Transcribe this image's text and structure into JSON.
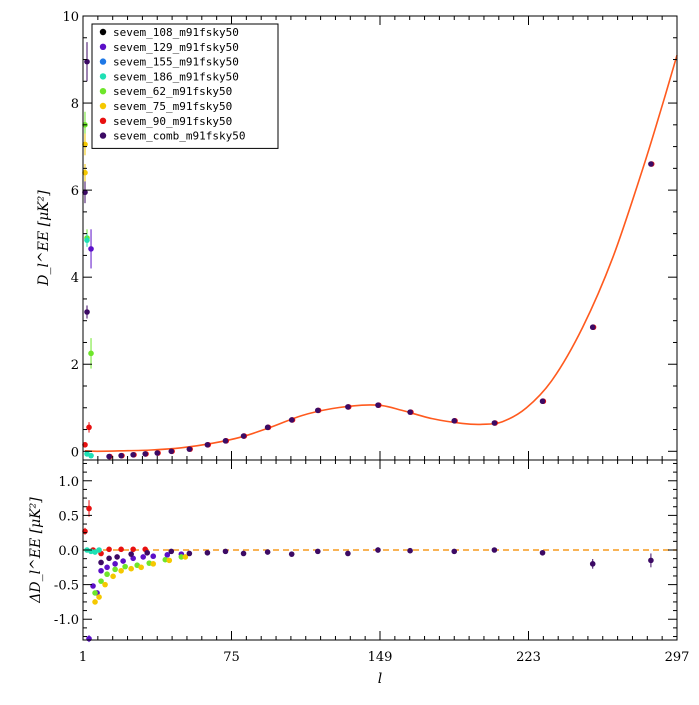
{
  "chart_data": {
    "type": "scatter",
    "xlabel": "l",
    "xlim": [
      1,
      297
    ],
    "xticks": [
      1,
      75,
      149,
      223,
      297
    ],
    "top_panel": {
      "ylabel": "D_l^EE [μK²]",
      "ylim": [
        -0.2,
        10
      ],
      "yticks": [
        0,
        2,
        4,
        6,
        8,
        10
      ]
    },
    "bottom_panel": {
      "ylabel": "ΔD_l^EE [μK²]",
      "ylim": [
        -1.3,
        1.3
      ],
      "yticks": [
        -1.0,
        -0.5,
        0.0,
        0.5,
        1.0
      ]
    },
    "legend": {
      "placement": "top-left",
      "entries": [
        {
          "name": "sevem_108_m91fsky50",
          "color": "#000000"
        },
        {
          "name": "sevem_129_m91fsky50",
          "color": "#5b0fc8"
        },
        {
          "name": "sevem_155_m91fsky50",
          "color": "#1e78e6"
        },
        {
          "name": "sevem_186_m91fsky50",
          "color": "#1fe0b4"
        },
        {
          "name": "sevem_62_m91fsky50",
          "color": "#6ee62a"
        },
        {
          "name": "sevem_75_m91fsky50",
          "color": "#f5c800"
        },
        {
          "name": "sevem_90_m91fsky50",
          "color": "#e81010"
        },
        {
          "name": "sevem_comb_m91fsky50",
          "color": "#3c0a64"
        }
      ]
    },
    "model_curve": {
      "name": "theory",
      "color": "#ff5a1e",
      "points": [
        [
          2,
          0.01
        ],
        [
          8,
          0.0
        ],
        [
          20,
          0.01
        ],
        [
          35,
          0.03
        ],
        [
          50,
          0.08
        ],
        [
          65,
          0.18
        ],
        [
          80,
          0.33
        ],
        [
          95,
          0.56
        ],
        [
          110,
          0.82
        ],
        [
          125,
          0.98
        ],
        [
          140,
          1.06
        ],
        [
          150,
          1.05
        ],
        [
          160,
          0.94
        ],
        [
          175,
          0.75
        ],
        [
          190,
          0.64
        ],
        [
          200,
          0.62
        ],
        [
          210,
          0.68
        ],
        [
          222,
          1.0
        ],
        [
          235,
          1.65
        ],
        [
          250,
          2.85
        ],
        [
          265,
          4.45
        ],
        [
          280,
          6.5
        ],
        [
          290,
          8.0
        ],
        [
          297,
          9.1
        ]
      ]
    },
    "top_points": {
      "binned": [
        {
          "l": 14,
          "value": -0.12
        },
        {
          "l": 20,
          "value": -0.1
        },
        {
          "l": 26,
          "value": -0.08
        },
        {
          "l": 32,
          "value": -0.06
        },
        {
          "l": 38,
          "value": -0.04
        },
        {
          "l": 45,
          "value": 0.0
        },
        {
          "l": 54,
          "value": 0.05
        },
        {
          "l": 63,
          "value": 0.15
        },
        {
          "l": 72,
          "value": 0.24
        },
        {
          "l": 81,
          "value": 0.35
        },
        {
          "l": 93,
          "value": 0.55
        },
        {
          "l": 105,
          "value": 0.72
        },
        {
          "l": 118,
          "value": 0.94
        },
        {
          "l": 133,
          "value": 1.02
        },
        {
          "l": 148,
          "value": 1.06
        },
        {
          "l": 164,
          "value": 0.9
        },
        {
          "l": 186,
          "value": 0.7
        },
        {
          "l": 206,
          "value": 0.65
        },
        {
          "l": 230,
          "value": 1.15
        },
        {
          "l": 255,
          "value": 2.85
        },
        {
          "l": 284,
          "value": 6.6
        }
      ],
      "low_l": [
        {
          "series": "sevem_62_m91fsky50",
          "l": 2,
          "value": 7.5,
          "err": 0.3
        },
        {
          "series": "sevem_75_m91fsky50",
          "l": 2,
          "value": 7.05,
          "err": 0.25
        },
        {
          "series": "sevem_75_m91fsky50",
          "l": 2,
          "value": 6.4,
          "err": 0.2
        },
        {
          "series": "sevem_comb_m91fsky50",
          "l": 3,
          "value": 8.95,
          "err": 0.45
        },
        {
          "series": "sevem_comb_m91fsky50",
          "l": 2,
          "value": 5.95,
          "err": 0.25
        },
        {
          "series": "sevem_62_m91fsky50",
          "l": 3,
          "value": 4.9,
          "err": 0.2
        },
        {
          "series": "sevem_186_m91fsky50",
          "l": 3,
          "value": 4.85,
          "err": 0.15
        },
        {
          "series": "sevem_129_m91fsky50",
          "l": 5,
          "value": 4.65,
          "err": 0.45
        },
        {
          "series": "sevem_comb_m91fsky50",
          "l": 3,
          "value": 3.2,
          "err": 0.15
        },
        {
          "series": "sevem_62_m91fsky50",
          "l": 5,
          "value": 2.25,
          "err": 0.35
        },
        {
          "series": "sevem_90_m91fsky50",
          "l": 4,
          "value": 0.55,
          "err": 0.12
        },
        {
          "series": "sevem_90_m91fsky50",
          "l": 2,
          "value": 0.15,
          "err": 0.06
        },
        {
          "series": "sevem_186_m91fsky50",
          "l": 3,
          "value": -0.06,
          "err": 0.03
        },
        {
          "series": "sevem_186_m91fsky50",
          "l": 5,
          "value": -0.1,
          "err": 0.03
        }
      ]
    },
    "residual_points": [
      {
        "series": "sevem_90_m91fsky50",
        "l": 2,
        "value": 0.27,
        "err": 0.05
      },
      {
        "series": "sevem_90_m91fsky50",
        "l": 4,
        "value": 0.6,
        "err": 0.12
      },
      {
        "series": "sevem_90_m91fsky50",
        "l": 6,
        "value": 0.0,
        "err": 0.02
      },
      {
        "series": "sevem_90_m91fsky50",
        "l": 10,
        "value": -0.05,
        "err": 0.02
      },
      {
        "series": "sevem_90_m91fsky50",
        "l": 14,
        "value": 0.01,
        "err": 0.01
      },
      {
        "series": "sevem_90_m91fsky50",
        "l": 20,
        "value": 0.01,
        "err": 0.01
      },
      {
        "series": "sevem_90_m91fsky50",
        "l": 26,
        "value": 0.01,
        "err": 0.01
      },
      {
        "series": "sevem_90_m91fsky50",
        "l": 32,
        "value": 0.01,
        "err": 0.01
      },
      {
        "series": "sevem_186_m91fsky50",
        "l": 3,
        "value": 0.0,
        "err": 0.03
      },
      {
        "series": "sevem_186_m91fsky50",
        "l": 5,
        "value": -0.02,
        "err": 0.02
      },
      {
        "series": "sevem_186_m91fsky50",
        "l": 7,
        "value": -0.03,
        "err": 0.02
      },
      {
        "series": "sevem_186_m91fsky50",
        "l": 9,
        "value": 0.0,
        "err": 0.02
      },
      {
        "series": "sevem_129_m91fsky50",
        "l": 4,
        "value": -1.28,
        "err": 0.05
      },
      {
        "series": "sevem_129_m91fsky50",
        "l": 6,
        "value": -0.52,
        "err": 0.03
      },
      {
        "series": "sevem_129_m91fsky50",
        "l": 8,
        "value": -0.62,
        "err": 0.03
      },
      {
        "series": "sevem_129_m91fsky50",
        "l": 10,
        "value": -0.3,
        "err": 0.02
      },
      {
        "series": "sevem_129_m91fsky50",
        "l": 13,
        "value": -0.25,
        "err": 0.02
      },
      {
        "series": "sevem_129_m91fsky50",
        "l": 17,
        "value": -0.2,
        "err": 0.02
      },
      {
        "series": "sevem_129_m91fsky50",
        "l": 21,
        "value": -0.16,
        "err": 0.02
      },
      {
        "series": "sevem_129_m91fsky50",
        "l": 26,
        "value": -0.12,
        "err": 0.02
      },
      {
        "series": "sevem_129_m91fsky50",
        "l": 31,
        "value": -0.1,
        "err": 0.02
      },
      {
        "series": "sevem_129_m91fsky50",
        "l": 36,
        "value": -0.09,
        "err": 0.02
      },
      {
        "series": "sevem_129_m91fsky50",
        "l": 43,
        "value": -0.07,
        "err": 0.02
      },
      {
        "series": "sevem_129_m91fsky50",
        "l": 50,
        "value": -0.06,
        "err": 0.02
      },
      {
        "series": "sevem_62_m91fsky50",
        "l": 7,
        "value": -0.62,
        "err": 0.03
      },
      {
        "series": "sevem_62_m91fsky50",
        "l": 10,
        "value": -0.45,
        "err": 0.03
      },
      {
        "series": "sevem_62_m91fsky50",
        "l": 13,
        "value": -0.35,
        "err": 0.02
      },
      {
        "series": "sevem_62_m91fsky50",
        "l": 17,
        "value": -0.28,
        "err": 0.02
      },
      {
        "series": "sevem_62_m91fsky50",
        "l": 22,
        "value": -0.24,
        "err": 0.02
      },
      {
        "series": "sevem_62_m91fsky50",
        "l": 28,
        "value": -0.22,
        "err": 0.02
      },
      {
        "series": "sevem_62_m91fsky50",
        "l": 34,
        "value": -0.19,
        "err": 0.02
      },
      {
        "series": "sevem_62_m91fsky50",
        "l": 42,
        "value": -0.14,
        "err": 0.02
      },
      {
        "series": "sevem_62_m91fsky50",
        "l": 50,
        "value": -0.1,
        "err": 0.02
      },
      {
        "series": "sevem_75_m91fsky50",
        "l": 7,
        "value": -0.75,
        "err": 0.03
      },
      {
        "series": "sevem_75_m91fsky50",
        "l": 9,
        "value": -0.68,
        "err": 0.03
      },
      {
        "series": "sevem_75_m91fsky50",
        "l": 12,
        "value": -0.5,
        "err": 0.03
      },
      {
        "series": "sevem_75_m91fsky50",
        "l": 16,
        "value": -0.38,
        "err": 0.02
      },
      {
        "series": "sevem_75_m91fsky50",
        "l": 20,
        "value": -0.3,
        "err": 0.02
      },
      {
        "series": "sevem_75_m91fsky50",
        "l": 25,
        "value": -0.27,
        "err": 0.02
      },
      {
        "series": "sevem_75_m91fsky50",
        "l": 30,
        "value": -0.25,
        "err": 0.02
      },
      {
        "series": "sevem_75_m91fsky50",
        "l": 36,
        "value": -0.2,
        "err": 0.02
      },
      {
        "series": "sevem_75_m91fsky50",
        "l": 44,
        "value": -0.15,
        "err": 0.02
      },
      {
        "series": "sevem_75_m91fsky50",
        "l": 52,
        "value": -0.1,
        "err": 0.02
      },
      {
        "series": "sevem_comb_m91fsky50",
        "l": 10,
        "value": -0.18,
        "err": 0.02
      },
      {
        "series": "sevem_comb_m91fsky50",
        "l": 14,
        "value": -0.12,
        "err": 0.02
      },
      {
        "series": "sevem_comb_m91fsky50",
        "l": 18,
        "value": -0.1,
        "err": 0.02
      },
      {
        "series": "sevem_comb_m91fsky50",
        "l": 25,
        "value": -0.06,
        "err": 0.02
      },
      {
        "series": "sevem_comb_m91fsky50",
        "l": 33,
        "value": -0.04,
        "err": 0.02
      },
      {
        "series": "sevem_comb_m91fsky50",
        "l": 45,
        "value": -0.02,
        "err": 0.02
      },
      {
        "series": "sevem_comb_m91fsky50",
        "l": 54,
        "value": -0.05,
        "err": 0.03
      },
      {
        "series": "sevem_comb_m91fsky50",
        "l": 63,
        "value": -0.04,
        "err": 0.03
      },
      {
        "series": "sevem_comb_m91fsky50",
        "l": 72,
        "value": -0.02,
        "err": 0.03
      },
      {
        "series": "sevem_comb_m91fsky50",
        "l": 81,
        "value": -0.05,
        "err": 0.03
      },
      {
        "series": "sevem_comb_m91fsky50",
        "l": 93,
        "value": -0.03,
        "err": 0.03
      },
      {
        "series": "sevem_comb_m91fsky50",
        "l": 105,
        "value": -0.06,
        "err": 0.03
      },
      {
        "series": "sevem_comb_m91fsky50",
        "l": 118,
        "value": -0.02,
        "err": 0.03
      },
      {
        "series": "sevem_comb_m91fsky50",
        "l": 133,
        "value": -0.05,
        "err": 0.03
      },
      {
        "series": "sevem_comb_m91fsky50",
        "l": 148,
        "value": 0.0,
        "err": 0.04
      },
      {
        "series": "sevem_comb_m91fsky50",
        "l": 164,
        "value": -0.01,
        "err": 0.03
      },
      {
        "series": "sevem_comb_m91fsky50",
        "l": 186,
        "value": -0.02,
        "err": 0.03
      },
      {
        "series": "sevem_comb_m91fsky50",
        "l": 206,
        "value": 0.0,
        "err": 0.03
      },
      {
        "series": "sevem_comb_m91fsky50",
        "l": 230,
        "value": -0.04,
        "err": 0.03
      },
      {
        "series": "sevem_comb_m91fsky50",
        "l": 255,
        "value": -0.2,
        "err": 0.07
      },
      {
        "series": "sevem_comb_m91fsky50",
        "l": 284,
        "value": -0.15,
        "err": 0.1
      }
    ]
  }
}
